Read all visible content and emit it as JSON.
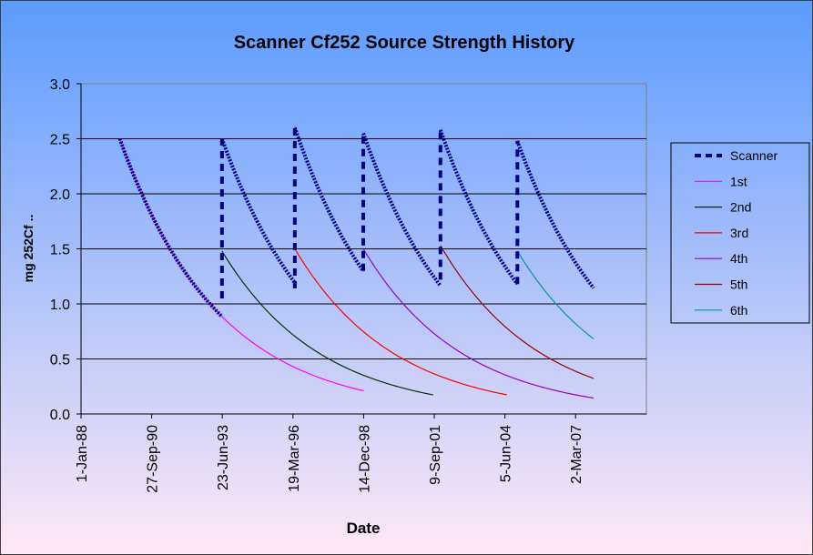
{
  "chart_data": {
    "type": "line",
    "title": "Scanner Cf252 Source Strength History",
    "xlabel": "Date",
    "ylabel": "mg 252Cf ..",
    "ylim": [
      0,
      3.0
    ],
    "yticks": [
      "0.0",
      "0.5",
      "1.0",
      "1.5",
      "2.0",
      "2.5",
      "3.0"
    ],
    "xticks": [
      "1-Jan-88",
      "27-Sep-90",
      "23-Jun-93",
      "19-Mar-96",
      "14-Dec-98",
      "9-Sep-01",
      "5-Jun-04",
      "2-Mar-07"
    ],
    "x_range": [
      "1-Jan-88",
      "28-Nov-09"
    ],
    "grid": "horizontal",
    "legend_position": "right",
    "half_life_years": 2.645,
    "series": [
      {
        "name": "Scanner",
        "color": "#000080",
        "style": "bold-dotted",
        "segments": [
          {
            "start": "2-Jul-89",
            "start_value": 2.5,
            "end": "18-Jun-93",
            "end_value": 1.05
          },
          {
            "start": "18-Jun-93",
            "start_value": 2.5,
            "end": "14-Apr-96",
            "end_value": 1.14
          },
          {
            "start": "14-Apr-96",
            "start_value": 2.6,
            "end": "9-Dec-98",
            "end_value": 1.3
          },
          {
            "start": "9-Dec-98",
            "start_value": 2.55,
            "end": "5-Dec-01",
            "end_value": 1.22
          },
          {
            "start": "5-Dec-01",
            "start_value": 2.58,
            "end": "28-Nov-04",
            "end_value": 1.18
          },
          {
            "start": "28-Nov-04",
            "start_value": 2.48,
            "end": "11-Nov-07",
            "end_value": 1.17
          }
        ]
      },
      {
        "name": "1st",
        "color": "#ff00ff",
        "start": "2-Jul-89",
        "start_value": 2.5,
        "end": "14-Dec-98",
        "end_value": 0.23
      },
      {
        "name": "2nd",
        "color": "#003300",
        "start": "18-Jun-93",
        "start_value": 1.48,
        "end": "25-Aug-01",
        "end_value": 0.16
      },
      {
        "name": "3rd",
        "color": "#ff0000",
        "start": "14-Apr-96",
        "start_value": 1.5,
        "end": "2-Jul-04",
        "end_value": 0.16
      },
      {
        "name": "4th",
        "color": "#9900cc",
        "start": "9-Dec-98",
        "start_value": 1.5,
        "end": "11-Nov-07",
        "end_value": 0.15
      },
      {
        "name": "5th",
        "color": "#990000",
        "start": "5-Dec-01",
        "start_value": 1.53,
        "end": "11-Nov-07",
        "end_value": 0.32
      },
      {
        "name": "6th",
        "color": "#009999",
        "start": "28-Nov-04",
        "start_value": 1.48,
        "end": "11-Nov-07",
        "end_value": 0.7
      }
    ],
    "colors": {
      "background_top": "#5b9bff",
      "background_bottom": "#ffe8f5",
      "plot_area": "transparent",
      "grid": "#000000",
      "border": "#808080"
    }
  }
}
